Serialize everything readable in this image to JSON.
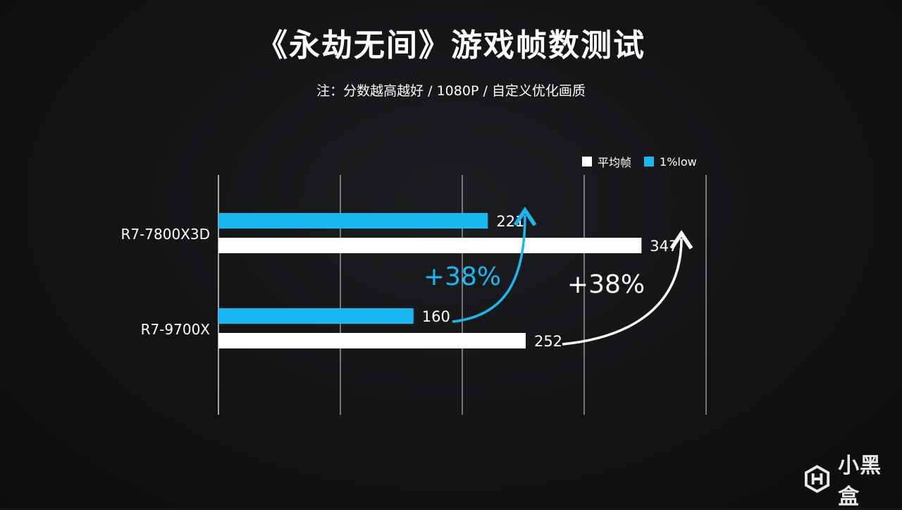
{
  "header": {
    "title": "《永劫无间》游戏帧数测试",
    "subtitle": "注：分数越高越好 / 1080P / 自定义优化画质"
  },
  "legend": {
    "items": [
      {
        "label": "平均帧",
        "color": "#ffffff"
      },
      {
        "label": "1%low",
        "color": "#1ab8f3"
      }
    ]
  },
  "annotations": {
    "low_gain": "+38%",
    "avg_gain": "+38%"
  },
  "brand": {
    "name": "小黑盒"
  },
  "chart_data": {
    "type": "bar",
    "orientation": "horizontal",
    "categories": [
      "R7-7800X3D",
      "R7-9700X"
    ],
    "series": [
      {
        "name": "1%low",
        "values": [
          221,
          160
        ],
        "color": "#1ab8f3"
      },
      {
        "name": "平均帧",
        "values": [
          347,
          252
        ],
        "color": "#ffffff"
      }
    ],
    "xlim": [
      0,
      400
    ],
    "grid": true,
    "legend_position": "top-right",
    "annotations": [
      "+38%",
      "+38%"
    ]
  }
}
